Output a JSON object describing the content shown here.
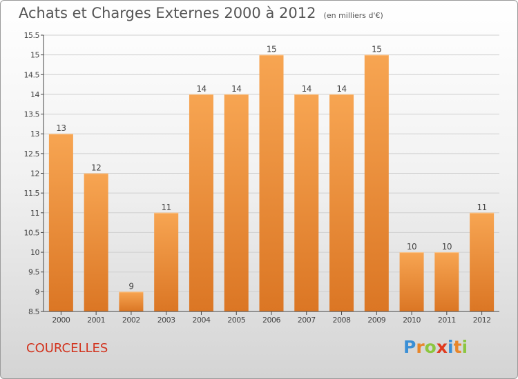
{
  "title": "Achats et Charges Externes 2000 à 2012",
  "unit": "(en milliers d'€)",
  "commune": "COURCELLES",
  "brand": {
    "text": "Proxiti",
    "letters": [
      {
        "ch": "P",
        "color": "#3a8fd6"
      },
      {
        "ch": "r",
        "color": "#e8862a"
      },
      {
        "ch": "o",
        "color": "#8cc63f"
      },
      {
        "ch": "x",
        "color": "#e03a1e"
      },
      {
        "ch": "i",
        "color": "#3a8fd6"
      },
      {
        "ch": "t",
        "color": "#e8862a"
      },
      {
        "ch": "i",
        "color": "#8cc63f"
      }
    ]
  },
  "colors": {
    "bar_top": "#f7a552",
    "bar_bottom": "#db7624",
    "grid": "#cfcfcf",
    "axis": "#444444",
    "text": "#444444"
  },
  "chart_data": {
    "type": "bar",
    "categories": [
      "2000",
      "2001",
      "2002",
      "2003",
      "2004",
      "2005",
      "2006",
      "2007",
      "2008",
      "2009",
      "2010",
      "2011",
      "2012"
    ],
    "values": [
      13,
      12,
      9,
      11,
      14,
      14,
      15,
      14,
      14,
      15,
      10,
      10,
      11
    ],
    "value_labels": [
      "13",
      "12",
      "9",
      "11",
      "14",
      "14",
      "15",
      "14",
      "14",
      "15",
      "10",
      "10",
      "11"
    ],
    "ylim": [
      8.5,
      15.5
    ],
    "yticks": [
      8.5,
      9,
      9.5,
      10,
      10.5,
      11,
      11.5,
      12,
      12.5,
      13,
      13.5,
      14,
      14.5,
      15,
      15.5
    ],
    "ytick_labels": [
      "8.5",
      "9",
      "9.5",
      "10",
      "10.5",
      "11",
      "11.5",
      "12",
      "12.5",
      "13",
      "13.5",
      "14",
      "14.5",
      "15",
      "15.5"
    ],
    "grid": true,
    "xlabel": "",
    "ylabel": ""
  }
}
